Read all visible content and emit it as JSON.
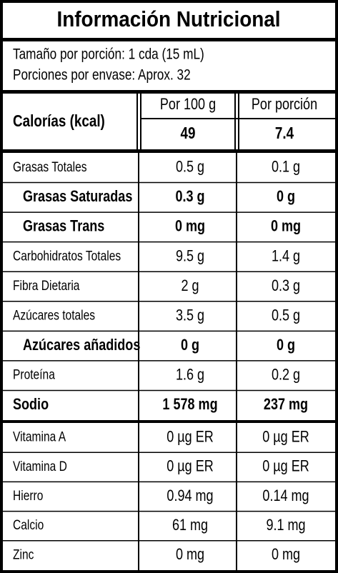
{
  "title": "Información Nutricional",
  "serving_size": "Tamaño por porción: 1 cda (15 mL)",
  "servings": "Porciones por envase: Aprox. 32",
  "header": {
    "calories_label": "Calorías (kcal)",
    "col1": "Por 100 g",
    "col2": "Por porción",
    "col1_value": "49",
    "col2_value": "7.4"
  },
  "nutrients": [
    {
      "label": "Grasas Totales",
      "per_100": "0.5 g",
      "per_serving": "0.1 g"
    },
    {
      "label": "Grasas Saturadas",
      "per_100": "0.3 g",
      "per_serving": "0 g",
      "bold": true,
      "indent": true
    },
    {
      "label": "Grasas Trans",
      "per_100": "0 mg",
      "per_serving": "0 mg",
      "bold": true,
      "indent": true
    },
    {
      "label": "Carbohidratos Totales",
      "per_100": "9.5 g",
      "per_serving": "1.4 g"
    },
    {
      "label": "Fibra Dietaria",
      "per_100": "2 g",
      "per_serving": "0.3 g"
    },
    {
      "label": "Azúcares totales",
      "per_100": "3.5 g",
      "per_serving": "0.5 g"
    },
    {
      "label": "Azúcares añadidos",
      "per_100": "0 g",
      "per_serving": "0 g",
      "bold": true,
      "indent": true
    },
    {
      "label": "Proteína",
      "per_100": "1.6 g",
      "per_serving": "0.2 g"
    },
    {
      "label": "Sodio",
      "per_100": "1 578 mg",
      "per_serving": "237 mg",
      "bold": true
    }
  ],
  "micronutrients": [
    {
      "label": "Vitamina A",
      "per_100": "0 µg ER",
      "per_serving": "0 µg ER"
    },
    {
      "label": "Vitamina D",
      "per_100": "0 µg ER",
      "per_serving": "0 µg ER"
    },
    {
      "label": "Hierro",
      "per_100": "0.94 mg",
      "per_serving": "0.14 mg"
    },
    {
      "label": "Calcio",
      "per_100": "61 mg",
      "per_serving": "9.1 mg"
    },
    {
      "label": "Zinc",
      "per_100": "0 mg",
      "per_serving": "0 mg"
    }
  ]
}
